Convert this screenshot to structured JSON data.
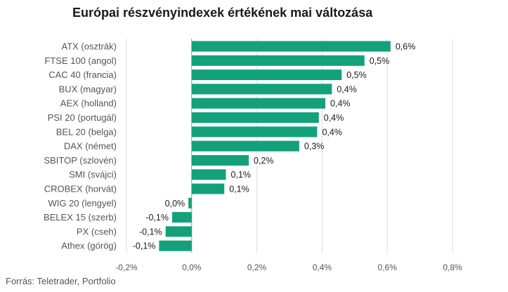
{
  "chart_data": {
    "type": "bar",
    "orientation": "horizontal",
    "title": "Európai részvényindexek értékének mai változása",
    "categories": [
      "ATX (osztrák)",
      "FTSE 100 (angol)",
      "CAC 40 (francia)",
      "BUX (magyar)",
      "AEX (holland)",
      "PSI 20 (portugál)",
      "BEL 20 (belga)",
      "DAX (német)",
      "SBITOP (szlovén)",
      "SMI (svájci)",
      "CROBEX (horvát)",
      "WIG 20 (lengyel)",
      "BELEX 15 (szerb)",
      "PX (cseh)",
      "Athex (görög)"
    ],
    "values": [
      0.61,
      0.53,
      0.46,
      0.43,
      0.41,
      0.39,
      0.385,
      0.33,
      0.175,
      0.105,
      0.1,
      -0.01,
      -0.06,
      -0.08,
      -0.1
    ],
    "data_labels": [
      "0,6%",
      "0,5%",
      "0,5%",
      "0,4%",
      "0,4%",
      "0,4%",
      "0,4%",
      "0,3%",
      "0,2%",
      "0,1%",
      "0,1%",
      "0,0%",
      "-0,1%",
      "-0,1%",
      "-0,1%"
    ],
    "xlim": [
      -0.2,
      0.8
    ],
    "x_ticks": [
      -0.2,
      0,
      0.2,
      0.4,
      0.6,
      0.8
    ],
    "x_tick_labels": [
      "-0,2%",
      "0,0%",
      "0,2%",
      "0,4%",
      "0,6%",
      "0,8%"
    ],
    "grid": true,
    "bar_color": "#13a17c",
    "source": "Forrás: Teletrader, Portfolio"
  }
}
